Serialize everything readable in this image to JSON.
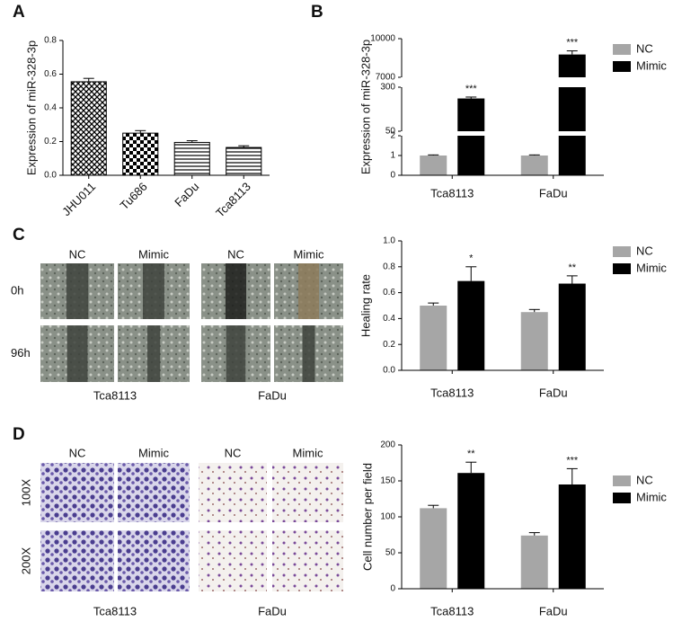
{
  "chart_data": [
    {
      "panel": "A",
      "type": "bar",
      "y_label": "Expression of miR-328-3p",
      "categories": [
        "JHU011",
        "Tu686",
        "FaDu",
        "Tca8113"
      ],
      "values": [
        0.555,
        0.25,
        0.195,
        0.165
      ],
      "errors": [
        0.02,
        0.015,
        0.01,
        0.01
      ],
      "fill_patterns": [
        "crosshatch",
        "checker",
        "horizontal-lines",
        "horizontal-lines"
      ],
      "ylim": [
        0,
        0.8
      ],
      "yticks": [
        {
          "value": 0,
          "label": "0.0"
        },
        0.2,
        0.4,
        0.6,
        0.8
      ]
    },
    {
      "panel": "B",
      "type": "bar",
      "y_label": "Expression of miR-328-3p",
      "categories": [
        "Tca8113",
        "FaDu"
      ],
      "y_segments": [
        {
          "ylim": [
            0,
            2
          ],
          "yticks": [
            0,
            1,
            2
          ]
        },
        {
          "ylim": [
            50,
            300
          ],
          "yticks": [
            50,
            300
          ]
        },
        {
          "ylim": [
            7000,
            10000
          ],
          "yticks": [
            7000,
            10000
          ]
        }
      ],
      "series": [
        {
          "name": "NC",
          "color": "#a6a6a6",
          "values": [
            1,
            1
          ],
          "errors": [
            0.03,
            0.03
          ]
        },
        {
          "name": "Mimic",
          "color": "#000000",
          "values": [
            236,
            8770
          ],
          "errors": [
            8,
            280
          ],
          "annotations": [
            "***",
            "***"
          ]
        }
      ],
      "legend": "right"
    },
    {
      "type": "bar",
      "y_label": "Healing rate",
      "categories": [
        "Tca8113",
        "FaDu"
      ],
      "ylim": [
        0,
        1
      ],
      "yticks": [
        {
          "value": 0,
          "label": "0.0"
        },
        0.2,
        0.4,
        0.6,
        0.8,
        {
          "value": 1,
          "label": "1.0"
        }
      ],
      "series": [
        {
          "name": "NC",
          "color": "#a6a6a6",
          "values": [
            0.5,
            0.45
          ],
          "errors": [
            0.02,
            0.02
          ]
        },
        {
          "name": "Mimic",
          "color": "#000000",
          "values": [
            0.69,
            0.67
          ],
          "errors": [
            0.11,
            0.06
          ],
          "annotations": [
            "*",
            "**"
          ]
        }
      ],
      "legend": "right"
    },
    {
      "type": "bar",
      "y_label": "Cell number per field",
      "categories": [
        "Tca8113",
        "FaDu"
      ],
      "ylim": [
        0,
        200
      ],
      "yticks": [
        0,
        50,
        100,
        150,
        200
      ],
      "series": [
        {
          "name": "NC",
          "color": "#a6a6a6",
          "values": [
            112,
            74
          ],
          "errors": [
            4,
            4
          ]
        },
        {
          "name": "Mimic",
          "color": "#000000",
          "values": [
            161,
            145
          ],
          "errors": [
            15,
            22
          ],
          "annotations": [
            "**",
            "***"
          ]
        }
      ],
      "legend": "right"
    }
  ],
  "image_panels": [
    {
      "panel": "C",
      "columns": [
        "NC",
        "Mimic",
        "NC",
        "Mimic"
      ],
      "rows": [
        "0h",
        "96h"
      ],
      "groups": [
        "Tca8113",
        "FaDu"
      ]
    },
    {
      "panel": "D",
      "columns": [
        "NC",
        "Mimic",
        "NC",
        "Mimic"
      ],
      "rows": [
        "100X",
        "200X"
      ],
      "groups": [
        "Tca8113",
        "FaDu"
      ]
    }
  ]
}
